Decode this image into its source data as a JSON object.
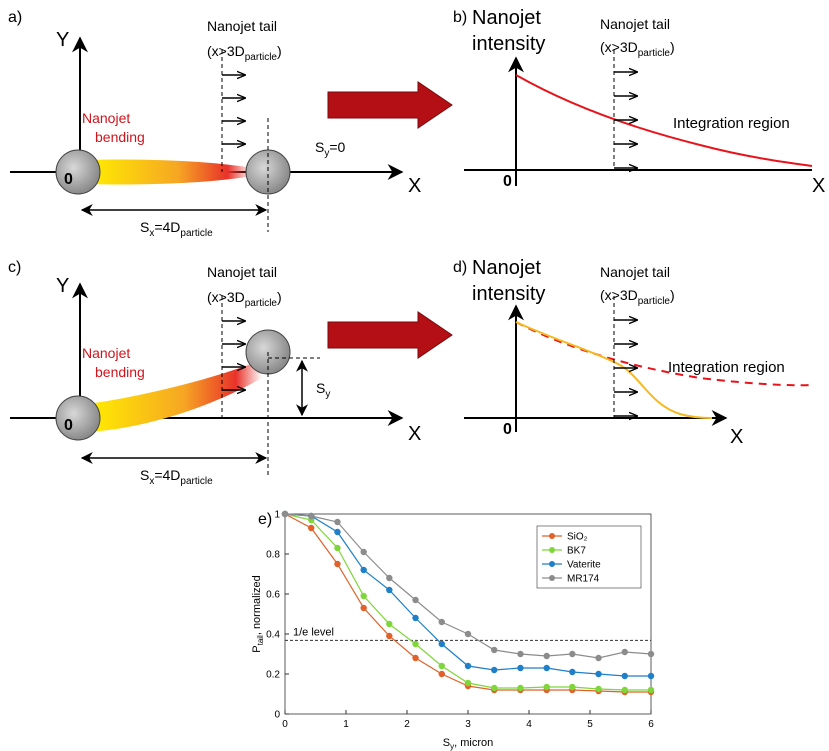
{
  "panels": {
    "a": {
      "label": "a)",
      "y_axis": "Y",
      "x_axis": "X",
      "origin": "0",
      "tail": {
        "line1": "Nanojet tail",
        "line2": "(x>3D",
        "line2_sub": "particle",
        "line2_end": ")"
      },
      "bending": {
        "line1": "Nanojet",
        "line2": "bending"
      },
      "sy": {
        "main": "S",
        "sub": "y",
        "rest": "=0"
      },
      "sx": {
        "main": "S",
        "sub": "x",
        "mid": "=4D",
        "sub2": "particle"
      }
    },
    "b": {
      "label": "b)",
      "y_axis": {
        "line1": "Nanojet",
        "line2": "intensity"
      },
      "x_axis": "X",
      "origin": "0",
      "tail": {
        "line1": "Nanojet tail",
        "line2": "(x>3D",
        "line2_sub": "particle",
        "line2_end": ")"
      },
      "region": "Integration region"
    },
    "c": {
      "label": "c)",
      "y_axis": "Y",
      "x_axis": "X",
      "origin": "0",
      "tail": {
        "line1": "Nanojet tail",
        "line2": "(x>3D",
        "line2_sub": "particle",
        "line2_end": ")"
      },
      "bending": {
        "line1": "Nanojet",
        "line2": "bending"
      },
      "sy": {
        "main": "S",
        "sub": "y"
      },
      "sx": {
        "main": "S",
        "sub": "x",
        "mid": "=4D",
        "sub2": "particle"
      }
    },
    "d": {
      "label": "d)",
      "y_axis": {
        "line1": "Nanojet",
        "line2": "intensity"
      },
      "x_axis": "X",
      "origin": "0",
      "tail": {
        "line1": "Nanojet tail",
        "line2": "(x>3D",
        "line2_sub": "particle",
        "line2_end": ")"
      },
      "region": "Integration region"
    }
  },
  "chart_data": {
    "type": "line",
    "label": "e)",
    "xlabel": {
      "main": "S",
      "sub": "y",
      "rest": ", micron"
    },
    "ylabel": {
      "main": "P",
      "sub": "tail",
      "rest": ", normalized"
    },
    "x": [
      0,
      0.43,
      0.86,
      1.29,
      1.71,
      2.14,
      2.57,
      3.0,
      3.43,
      3.86,
      4.29,
      4.71,
      5.14,
      5.57,
      6.0
    ],
    "series": [
      {
        "name": "SiO₂",
        "color": "#e0622a",
        "values": [
          1,
          0.93,
          0.75,
          0.53,
          0.39,
          0.28,
          0.2,
          0.14,
          0.12,
          0.12,
          0.12,
          0.12,
          0.115,
          0.11,
          0.11
        ]
      },
      {
        "name": "BK7",
        "color": "#7ed63a",
        "values": [
          1,
          0.97,
          0.83,
          0.59,
          0.45,
          0.35,
          0.24,
          0.155,
          0.13,
          0.13,
          0.135,
          0.135,
          0.125,
          0.12,
          0.12
        ]
      },
      {
        "name": "Vaterite",
        "color": "#1f7fc8",
        "values": [
          1,
          0.99,
          0.91,
          0.72,
          0.62,
          0.48,
          0.35,
          0.24,
          0.22,
          0.23,
          0.23,
          0.21,
          0.2,
          0.19,
          0.19
        ]
      },
      {
        "name": "MR174",
        "color": "#8c8c8c",
        "values": [
          1,
          0.99,
          0.96,
          0.81,
          0.68,
          0.57,
          0.46,
          0.4,
          0.32,
          0.3,
          0.29,
          0.3,
          0.28,
          0.31,
          0.3
        ]
      }
    ],
    "threshold": 0.368,
    "threshold_label": "1/e level",
    "xlim": [
      0,
      6
    ],
    "xticks": [
      0,
      1,
      2,
      3,
      4,
      5,
      6
    ],
    "ylim": [
      0,
      1
    ],
    "yticks": [
      0,
      0.2,
      0.4,
      0.6,
      0.8,
      1
    ],
    "legend": "upper right"
  }
}
